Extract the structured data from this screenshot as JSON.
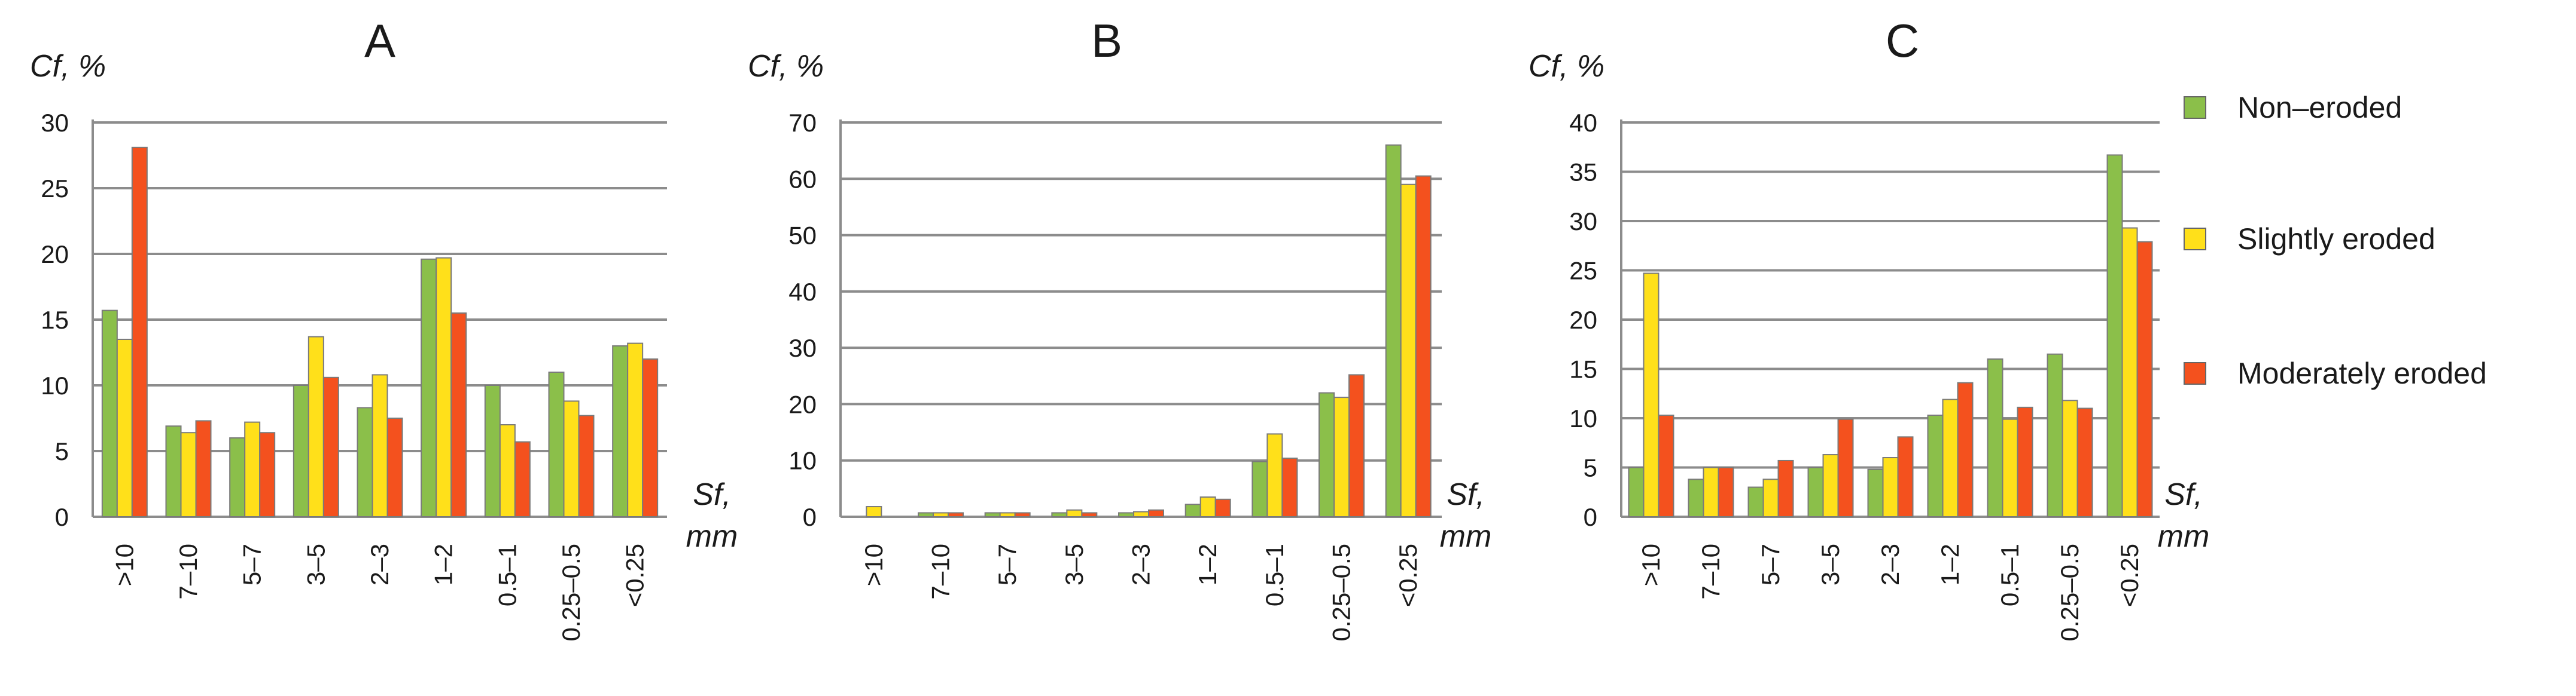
{
  "legend": {
    "items": [
      {
        "label": "Non–eroded",
        "color": "#8bbf4a"
      },
      {
        "label": "Slightly eroded",
        "color": "#ffe01a"
      },
      {
        "label": "Moderately eroded",
        "color": "#f4511e"
      }
    ]
  },
  "chart_data": [
    {
      "type": "bar",
      "title": "A",
      "ylabel": "Cf, %",
      "xlabel_line1": "Sf,",
      "xlabel_line2": "mm",
      "ylim": [
        0,
        30
      ],
      "ytick_step": 5,
      "categories": [
        ">10",
        "7–10",
        "5–7",
        "3–5",
        "2–3",
        "1–2",
        "0.5–1",
        "0.25–0.5",
        "<0.25"
      ],
      "series": [
        {
          "name": "Non–eroded",
          "values": [
            15.7,
            6.9,
            6.0,
            10.0,
            8.3,
            19.6,
            10.0,
            11.0,
            13.0
          ]
        },
        {
          "name": "Slightly eroded",
          "values": [
            13.5,
            6.4,
            7.2,
            13.7,
            10.8,
            19.7,
            7.0,
            8.8,
            13.2
          ]
        },
        {
          "name": "Moderately eroded",
          "values": [
            28.1,
            7.3,
            6.4,
            10.6,
            7.5,
            15.5,
            5.7,
            7.7,
            12.0
          ]
        }
      ]
    },
    {
      "type": "bar",
      "title": "B",
      "ylabel": "Cf, %",
      "xlabel_line1": "Sf,",
      "xlabel_line2": "mm",
      "ylim": [
        0,
        70
      ],
      "ytick_step": 10,
      "categories": [
        ">10",
        "7–10",
        "5–7",
        "3–5",
        "2–3",
        "1–2",
        "0.5–1",
        "0.25–0.5",
        "<0.25"
      ],
      "series": [
        {
          "name": "Non–eroded",
          "values": [
            0.0,
            0.7,
            0.7,
            0.7,
            0.7,
            2.2,
            9.8,
            22.0,
            66.0
          ]
        },
        {
          "name": "Slightly eroded",
          "values": [
            1.8,
            0.7,
            0.7,
            1.2,
            0.9,
            3.5,
            14.7,
            21.2,
            59.0
          ]
        },
        {
          "name": "Moderately eroded",
          "values": [
            0.0,
            0.7,
            0.7,
            0.7,
            1.2,
            3.1,
            10.4,
            25.2,
            60.5
          ]
        }
      ]
    },
    {
      "type": "bar",
      "title": "C",
      "ylabel": "Cf, %",
      "xlabel_line1": "Sf,",
      "xlabel_line2": "mm",
      "ylim": [
        0,
        40
      ],
      "ytick_step": 5,
      "categories": [
        ">10",
        "7–10",
        "5–7",
        "3–5",
        "2–3",
        "1–2",
        "0.5–1",
        "0.25–0.5",
        "<0.25"
      ],
      "series": [
        {
          "name": "Non–eroded",
          "values": [
            5.0,
            3.8,
            3.0,
            5.0,
            4.8,
            10.3,
            16.0,
            16.5,
            36.7
          ]
        },
        {
          "name": "Slightly eroded",
          "values": [
            24.7,
            5.0,
            3.8,
            6.3,
            6.0,
            11.9,
            9.9,
            11.8,
            29.3
          ]
        },
        {
          "name": "Moderately eroded",
          "values": [
            10.3,
            5.0,
            5.7,
            9.9,
            8.1,
            13.6,
            11.1,
            11.0,
            27.9
          ]
        }
      ]
    }
  ]
}
